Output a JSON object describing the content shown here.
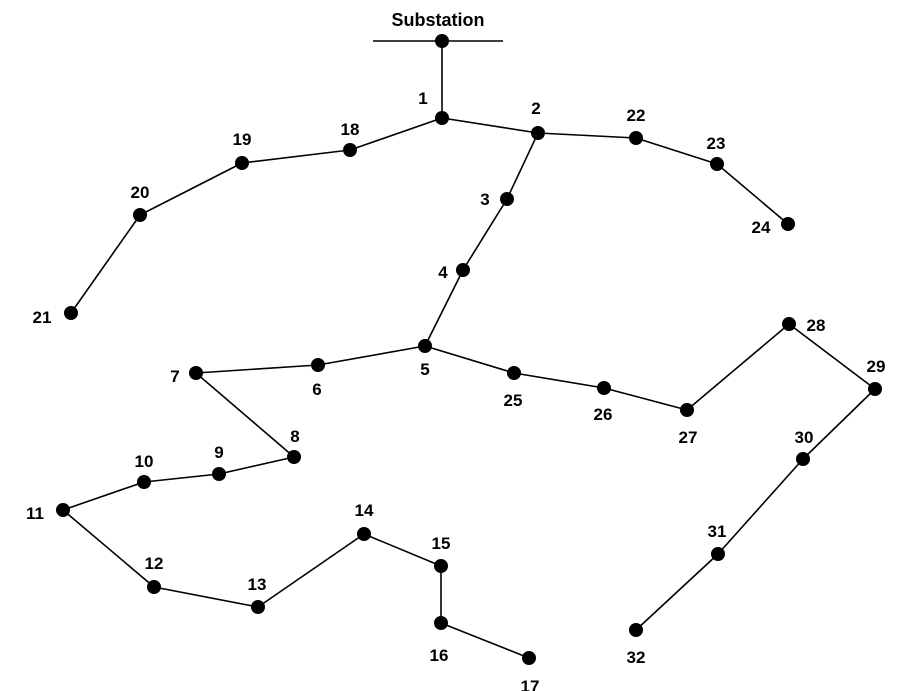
{
  "title": "Substation",
  "colors": {
    "line": "#000000",
    "node": "#000000",
    "background": "#ffffff"
  },
  "nodes": [
    {
      "id": "sub",
      "label": ""
    },
    {
      "id": "1",
      "label": "1"
    },
    {
      "id": "2",
      "label": "2"
    },
    {
      "id": "3",
      "label": "3"
    },
    {
      "id": "4",
      "label": "4"
    },
    {
      "id": "5",
      "label": "5"
    },
    {
      "id": "6",
      "label": "6"
    },
    {
      "id": "7",
      "label": "7"
    },
    {
      "id": "8",
      "label": "8"
    },
    {
      "id": "9",
      "label": "9"
    },
    {
      "id": "10",
      "label": "10"
    },
    {
      "id": "11",
      "label": "11"
    },
    {
      "id": "12",
      "label": "12"
    },
    {
      "id": "13",
      "label": "13"
    },
    {
      "id": "14",
      "label": "14"
    },
    {
      "id": "15",
      "label": "15"
    },
    {
      "id": "16",
      "label": "16"
    },
    {
      "id": "17",
      "label": "17"
    },
    {
      "id": "18",
      "label": "18"
    },
    {
      "id": "19",
      "label": "19"
    },
    {
      "id": "20",
      "label": "20"
    },
    {
      "id": "21",
      "label": "21"
    },
    {
      "id": "22",
      "label": "22"
    },
    {
      "id": "23",
      "label": "23"
    },
    {
      "id": "24",
      "label": "24"
    },
    {
      "id": "25",
      "label": "25"
    },
    {
      "id": "26",
      "label": "26"
    },
    {
      "id": "27",
      "label": "27"
    },
    {
      "id": "28",
      "label": "28"
    },
    {
      "id": "29",
      "label": "29"
    },
    {
      "id": "30",
      "label": "30"
    },
    {
      "id": "31",
      "label": "31"
    },
    {
      "id": "32",
      "label": "32"
    }
  ],
  "edges": [
    [
      "sub",
      "1"
    ],
    [
      "1",
      "2"
    ],
    [
      "2",
      "3"
    ],
    [
      "3",
      "4"
    ],
    [
      "4",
      "5"
    ],
    [
      "5",
      "6"
    ],
    [
      "6",
      "7"
    ],
    [
      "7",
      "8"
    ],
    [
      "8",
      "9"
    ],
    [
      "9",
      "10"
    ],
    [
      "10",
      "11"
    ],
    [
      "11",
      "12"
    ],
    [
      "12",
      "13"
    ],
    [
      "13",
      "14"
    ],
    [
      "14",
      "15"
    ],
    [
      "15",
      "16"
    ],
    [
      "16",
      "17"
    ],
    [
      "1",
      "18"
    ],
    [
      "18",
      "19"
    ],
    [
      "19",
      "20"
    ],
    [
      "20",
      "21"
    ],
    [
      "2",
      "22"
    ],
    [
      "22",
      "23"
    ],
    [
      "23",
      "24"
    ],
    [
      "5",
      "25"
    ],
    [
      "25",
      "26"
    ],
    [
      "26",
      "27"
    ],
    [
      "27",
      "28"
    ],
    [
      "28",
      "29"
    ],
    [
      "29",
      "30"
    ],
    [
      "30",
      "31"
    ],
    [
      "31",
      "32"
    ]
  ]
}
